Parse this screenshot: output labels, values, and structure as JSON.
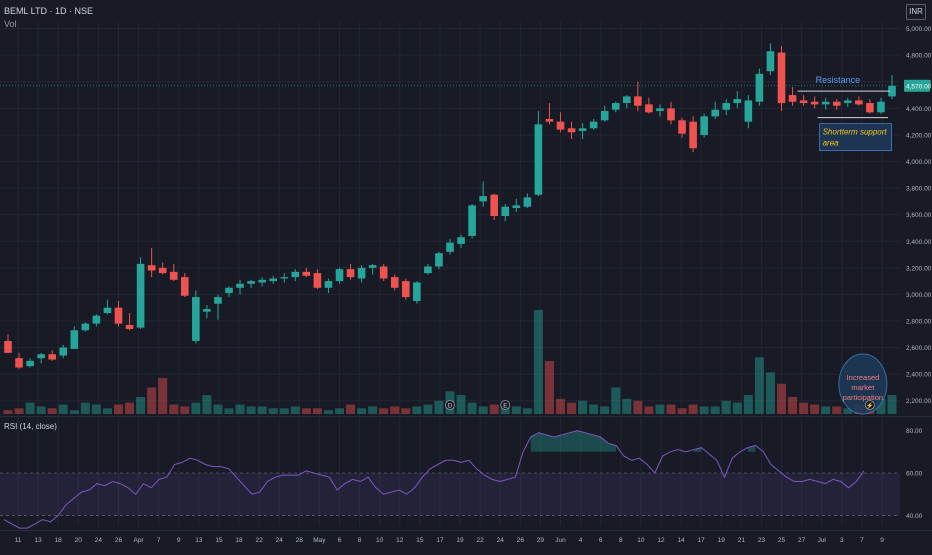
{
  "header": {
    "symbol_line": "BEML LTD · 1D · NSE",
    "volume_label": "Vol",
    "currency": "INR"
  },
  "chart_data": [
    {
      "type": "candlestick",
      "title": "BEML LTD · 1D · NSE",
      "x_tick_labels": [
        "11",
        "13",
        "18",
        "20",
        "24",
        "26",
        "Apr",
        "7",
        "9",
        "13",
        "15",
        "18",
        "22",
        "24",
        "28",
        "May",
        "6",
        "8",
        "10",
        "12",
        "15",
        "17",
        "19",
        "22",
        "24",
        "26",
        "29",
        "Jun",
        "4",
        "6",
        "8",
        "10",
        "12",
        "14",
        "17",
        "19",
        "21",
        "23",
        "25",
        "27",
        "Jul",
        "3",
        "7",
        "9"
      ],
      "y_tick_labels": [
        "2,200.00",
        "2,400.00",
        "2,600.00",
        "2,800.00",
        "3,000.00",
        "3,200.00",
        "3,400.00",
        "3,600.00",
        "3,800.00",
        "4,000.00",
        "4,200.00",
        "4,400.00",
        "4,600.00",
        "4,800.00",
        "5,000.00"
      ],
      "ylim": [
        2100,
        5050
      ],
      "last_price_label": "4,570.00",
      "last_price": 4570,
      "colors": {
        "up": "#26a69a",
        "down": "#ef5350",
        "background": "#181b25",
        "grid": "#232632"
      },
      "candles": [
        {
          "o": 2650,
          "h": 2700,
          "l": 2560,
          "c": 2560
        },
        {
          "o": 2520,
          "h": 2560,
          "l": 2440,
          "c": 2450
        },
        {
          "o": 2460,
          "h": 2520,
          "l": 2450,
          "c": 2500
        },
        {
          "o": 2520,
          "h": 2560,
          "l": 2480,
          "c": 2550
        },
        {
          "o": 2550,
          "h": 2580,
          "l": 2500,
          "c": 2510
        },
        {
          "o": 2540,
          "h": 2620,
          "l": 2520,
          "c": 2600
        },
        {
          "o": 2590,
          "h": 2760,
          "l": 2590,
          "c": 2730
        },
        {
          "o": 2730,
          "h": 2790,
          "l": 2720,
          "c": 2780
        },
        {
          "o": 2780,
          "h": 2850,
          "l": 2760,
          "c": 2840
        },
        {
          "o": 2860,
          "h": 2960,
          "l": 2850,
          "c": 2900
        },
        {
          "o": 2900,
          "h": 2950,
          "l": 2760,
          "c": 2780
        },
        {
          "o": 2770,
          "h": 2860,
          "l": 2730,
          "c": 2740
        },
        {
          "o": 2750,
          "h": 3280,
          "l": 2740,
          "c": 3230
        },
        {
          "o": 3220,
          "h": 3350,
          "l": 3130,
          "c": 3180
        },
        {
          "o": 3200,
          "h": 3240,
          "l": 3150,
          "c": 3160
        },
        {
          "o": 3170,
          "h": 3230,
          "l": 3100,
          "c": 3110
        },
        {
          "o": 3130,
          "h": 3160,
          "l": 2980,
          "c": 2990
        },
        {
          "o": 2650,
          "h": 3030,
          "l": 2630,
          "c": 2980
        },
        {
          "o": 2870,
          "h": 2920,
          "l": 2820,
          "c": 2890
        },
        {
          "o": 2930,
          "h": 3000,
          "l": 2810,
          "c": 2980
        },
        {
          "o": 3010,
          "h": 3060,
          "l": 2980,
          "c": 3050
        },
        {
          "o": 3050,
          "h": 3110,
          "l": 3000,
          "c": 3080
        },
        {
          "o": 3080,
          "h": 3110,
          "l": 3050,
          "c": 3100
        },
        {
          "o": 3090,
          "h": 3130,
          "l": 3060,
          "c": 3110
        },
        {
          "o": 3100,
          "h": 3140,
          "l": 3080,
          "c": 3120
        },
        {
          "o": 3120,
          "h": 3160,
          "l": 3090,
          "c": 3130
        },
        {
          "o": 3130,
          "h": 3190,
          "l": 3100,
          "c": 3170
        },
        {
          "o": 3170,
          "h": 3200,
          "l": 3130,
          "c": 3140
        },
        {
          "o": 3160,
          "h": 3190,
          "l": 3040,
          "c": 3050
        },
        {
          "o": 3050,
          "h": 3120,
          "l": 3010,
          "c": 3100
        },
        {
          "o": 3100,
          "h": 3200,
          "l": 3080,
          "c": 3190
        },
        {
          "o": 3190,
          "h": 3230,
          "l": 3110,
          "c": 3130
        },
        {
          "o": 3120,
          "h": 3220,
          "l": 3090,
          "c": 3200
        },
        {
          "o": 3200,
          "h": 3230,
          "l": 3150,
          "c": 3220
        },
        {
          "o": 3210,
          "h": 3230,
          "l": 3100,
          "c": 3120
        },
        {
          "o": 3130,
          "h": 3150,
          "l": 3030,
          "c": 3050
        },
        {
          "o": 3100,
          "h": 3120,
          "l": 2960,
          "c": 2980
        },
        {
          "o": 2950,
          "h": 3100,
          "l": 2930,
          "c": 3090
        },
        {
          "o": 3160,
          "h": 3230,
          "l": 3150,
          "c": 3210
        },
        {
          "o": 3210,
          "h": 3320,
          "l": 3190,
          "c": 3310
        },
        {
          "o": 3320,
          "h": 3420,
          "l": 3300,
          "c": 3390
        },
        {
          "o": 3380,
          "h": 3450,
          "l": 3350,
          "c": 3430
        },
        {
          "o": 3440,
          "h": 3680,
          "l": 3420,
          "c": 3670
        },
        {
          "o": 3700,
          "h": 3850,
          "l": 3660,
          "c": 3740
        },
        {
          "o": 3750,
          "h": 3760,
          "l": 3560,
          "c": 3590
        },
        {
          "o": 3590,
          "h": 3680,
          "l": 3550,
          "c": 3660
        },
        {
          "o": 3650,
          "h": 3720,
          "l": 3620,
          "c": 3670
        },
        {
          "o": 3660,
          "h": 3760,
          "l": 3650,
          "c": 3730
        },
        {
          "o": 3750,
          "h": 4380,
          "l": 3740,
          "c": 4280
        },
        {
          "o": 4320,
          "h": 4440,
          "l": 4280,
          "c": 4300
        },
        {
          "o": 4300,
          "h": 4370,
          "l": 4220,
          "c": 4240
        },
        {
          "o": 4250,
          "h": 4300,
          "l": 4170,
          "c": 4220
        },
        {
          "o": 4230,
          "h": 4290,
          "l": 4170,
          "c": 4250
        },
        {
          "o": 4250,
          "h": 4320,
          "l": 4240,
          "c": 4300
        },
        {
          "o": 4310,
          "h": 4420,
          "l": 4300,
          "c": 4380
        },
        {
          "o": 4390,
          "h": 4450,
          "l": 4370,
          "c": 4440
        },
        {
          "o": 4440,
          "h": 4500,
          "l": 4400,
          "c": 4490
        },
        {
          "o": 4490,
          "h": 4600,
          "l": 4380,
          "c": 4420
        },
        {
          "o": 4430,
          "h": 4480,
          "l": 4360,
          "c": 4370
        },
        {
          "o": 4380,
          "h": 4430,
          "l": 4340,
          "c": 4400
        },
        {
          "o": 4400,
          "h": 4450,
          "l": 4280,
          "c": 4310
        },
        {
          "o": 4310,
          "h": 4330,
          "l": 4180,
          "c": 4210
        },
        {
          "o": 4300,
          "h": 4340,
          "l": 4070,
          "c": 4100
        },
        {
          "o": 4200,
          "h": 4360,
          "l": 4180,
          "c": 4340
        },
        {
          "o": 4340,
          "h": 4450,
          "l": 4320,
          "c": 4390
        },
        {
          "o": 4390,
          "h": 4470,
          "l": 4350,
          "c": 4440
        },
        {
          "o": 4440,
          "h": 4530,
          "l": 4400,
          "c": 4470
        },
        {
          "o": 4300,
          "h": 4500,
          "l": 4250,
          "c": 4460
        },
        {
          "o": 4450,
          "h": 4700,
          "l": 4420,
          "c": 4660
        },
        {
          "o": 4680,
          "h": 4890,
          "l": 4650,
          "c": 4830
        },
        {
          "o": 4820,
          "h": 4870,
          "l": 4380,
          "c": 4440
        },
        {
          "o": 4500,
          "h": 4560,
          "l": 4420,
          "c": 4450
        },
        {
          "o": 4460,
          "h": 4500,
          "l": 4420,
          "c": 4440
        },
        {
          "o": 4450,
          "h": 4490,
          "l": 4400,
          "c": 4430
        },
        {
          "o": 4430,
          "h": 4480,
          "l": 4390,
          "c": 4450
        },
        {
          "o": 4450,
          "h": 4470,
          "l": 4390,
          "c": 4420
        },
        {
          "o": 4440,
          "h": 4480,
          "l": 4410,
          "c": 4460
        },
        {
          "o": 4460,
          "h": 4490,
          "l": 4420,
          "c": 4430
        },
        {
          "o": 4440,
          "h": 4470,
          "l": 4360,
          "c": 4370
        },
        {
          "o": 4370,
          "h": 4480,
          "l": 4360,
          "c": 4450
        },
        {
          "o": 4490,
          "h": 4650,
          "l": 4470,
          "c": 4570
        }
      ],
      "volume_values": [
        2,
        3,
        6,
        4,
        3,
        5,
        2,
        6,
        5,
        3,
        5,
        6,
        9,
        14,
        19,
        5,
        4,
        6,
        10,
        5,
        3,
        5,
        4,
        4,
        3,
        3,
        4,
        3,
        3,
        2,
        3,
        5,
        3,
        4,
        3,
        4,
        3,
        4,
        5,
        7,
        12,
        10,
        6,
        4,
        5,
        4,
        4,
        3,
        55,
        28,
        8,
        6,
        7,
        5,
        4,
        14,
        8,
        7,
        4,
        5,
        5,
        3,
        5,
        4,
        4,
        7,
        6,
        10,
        30,
        22,
        16,
        9,
        6,
        5,
        4,
        4,
        3,
        5,
        6,
        8,
        10
      ],
      "annotations": [
        {
          "text": "Resistance",
          "price": 4530
        },
        {
          "text": "Shortterm support area",
          "price": 4330
        },
        {
          "text": "Increased market participation",
          "price": null
        }
      ],
      "events": [
        {
          "label": "D",
          "index": 40
        },
        {
          "label": "E",
          "index": 45
        },
        {
          "label": "⚡",
          "index": 78
        }
      ]
    },
    {
      "type": "line",
      "title": "RSI (14, close)",
      "y_tick_labels": [
        "40.00",
        "60.00",
        "80.00"
      ],
      "ylim": [
        35,
        85
      ],
      "band": [
        40,
        60
      ],
      "values": [
        38,
        36,
        34,
        34,
        36,
        38,
        37,
        40,
        45,
        48,
        51,
        52,
        55,
        54,
        56,
        55,
        53,
        50,
        55,
        53,
        57,
        58,
        64,
        65,
        67,
        66,
        64,
        63,
        63,
        62,
        58,
        54,
        50,
        51,
        56,
        58,
        59,
        59,
        59,
        61,
        60,
        59,
        58,
        52,
        55,
        57,
        56,
        58,
        53,
        50,
        51,
        52,
        50,
        53,
        58,
        62,
        64,
        66,
        66,
        65,
        66,
        62,
        59,
        57,
        56,
        57,
        58,
        70,
        77,
        79,
        78,
        77,
        78,
        79,
        80,
        79,
        78,
        77,
        74,
        73,
        68,
        66,
        67,
        64,
        60,
        68,
        70,
        71,
        70,
        71,
        72,
        69,
        66,
        58,
        67,
        70,
        72,
        73,
        70,
        64,
        61,
        58,
        56,
        56,
        57,
        56,
        55,
        57,
        56,
        53,
        56,
        61
      ]
    }
  ]
}
